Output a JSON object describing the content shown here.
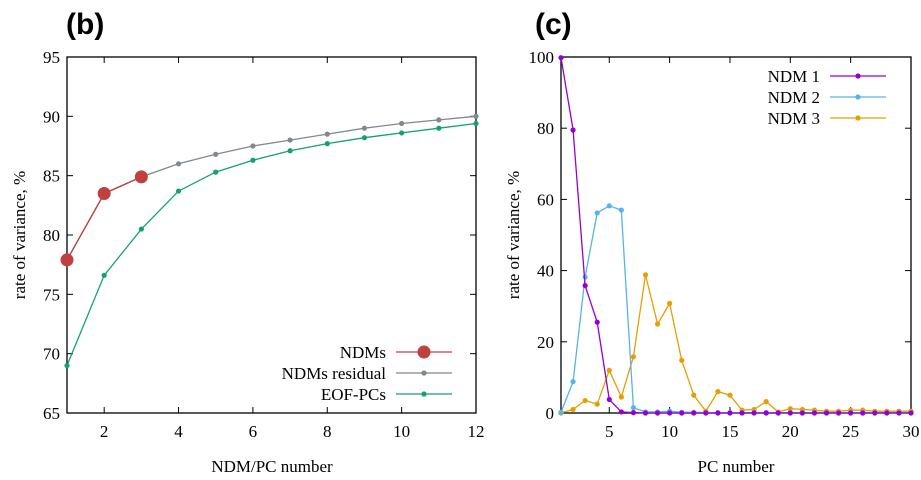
{
  "chart_data": [
    {
      "panel": "(b)",
      "type": "line",
      "xlabel": "NDM/PC number",
      "ylabel": "rate of variance, %",
      "xlim": [
        1,
        12
      ],
      "ylim": [
        65,
        95
      ],
      "xticks": [
        2,
        4,
        6,
        8,
        10,
        12
      ],
      "yticks": [
        65,
        70,
        75,
        80,
        85,
        90,
        95
      ],
      "legend_position": "bottom-right",
      "series": [
        {
          "name": "NDMs",
          "color": "#c04040",
          "marker": "large-circle",
          "x": [
            1,
            2,
            3
          ],
          "y": [
            77.9,
            83.5,
            84.9
          ]
        },
        {
          "name": "NDMs residual",
          "color": "#808890",
          "marker": "small-circle",
          "x": [
            1,
            2,
            3,
            4,
            5,
            6,
            7,
            8,
            9,
            10,
            11,
            12
          ],
          "y": [
            77.9,
            83.5,
            84.9,
            86.0,
            86.8,
            87.5,
            88.0,
            88.5,
            89.0,
            89.4,
            89.7,
            90.0
          ]
        },
        {
          "name": "EOF-PCs",
          "color": "#14a074",
          "marker": "small-circle",
          "x": [
            1,
            2,
            3,
            4,
            5,
            6,
            7,
            8,
            9,
            10,
            11,
            12
          ],
          "y": [
            69.0,
            76.6,
            80.5,
            83.7,
            85.3,
            86.3,
            87.1,
            87.7,
            88.2,
            88.6,
            89.0,
            89.4
          ]
        }
      ]
    },
    {
      "panel": "(c)",
      "type": "line",
      "xlabel": "PC number",
      "ylabel": "rate of variance, %",
      "xlim": [
        1,
        30
      ],
      "ylim": [
        0,
        100
      ],
      "xticks": [
        5,
        10,
        15,
        20,
        25,
        30
      ],
      "yticks": [
        0,
        20,
        40,
        60,
        80,
        100
      ],
      "legend_position": "top-right",
      "series": [
        {
          "name": "NDM 1",
          "color": "#9400d3",
          "marker": "small-circle",
          "x": [
            1,
            2,
            3,
            4,
            5,
            6,
            7,
            8,
            9,
            10,
            11,
            12,
            13,
            14,
            15,
            16,
            17,
            18,
            19,
            20,
            21,
            22,
            23,
            24,
            25,
            26,
            27,
            28,
            29,
            30
          ],
          "y": [
            99.8,
            79.5,
            35.8,
            25.5,
            3.8,
            0.3,
            0.1,
            0,
            0,
            0,
            0,
            0,
            0,
            0,
            0,
            0,
            0,
            0,
            0,
            0,
            0,
            0,
            0,
            0,
            0,
            0,
            0,
            0,
            0,
            0
          ]
        },
        {
          "name": "NDM 2",
          "color": "#56b4e9",
          "marker": "small-circle",
          "x": [
            1,
            2,
            3,
            4,
            5,
            6,
            7,
            8,
            9,
            10,
            11,
            12,
            13,
            14,
            15,
            16,
            17,
            18,
            19,
            20,
            21,
            22,
            23,
            24,
            25,
            26,
            27,
            28,
            29,
            30
          ],
          "y": [
            0.2,
            8.8,
            38.2,
            56.2,
            58.2,
            57.0,
            1.5,
            0.3,
            0.3,
            0.5,
            0.2,
            0.2,
            0.1,
            0.1,
            0.1,
            0.1,
            0.1,
            0.1,
            0.1,
            0.1,
            0.1,
            0.1,
            0.1,
            0.1,
            0.1,
            0.1,
            0.1,
            0.1,
            0.1,
            0.1
          ]
        },
        {
          "name": "NDM 3",
          "color": "#e69f00",
          "marker": "small-circle",
          "x": [
            1,
            2,
            3,
            4,
            5,
            6,
            7,
            8,
            9,
            10,
            11,
            12,
            13,
            14,
            15,
            16,
            17,
            18,
            19,
            20,
            21,
            22,
            23,
            24,
            25,
            26,
            27,
            28,
            29,
            30
          ],
          "y": [
            0,
            1.0,
            3.5,
            2.5,
            12.0,
            4.5,
            15.8,
            38.8,
            25.0,
            30.8,
            14.8,
            5.0,
            0.5,
            6.0,
            5.0,
            0.8,
            1.0,
            3.2,
            0.3,
            1.2,
            1.0,
            0.8,
            0.5,
            0.5,
            0.8,
            0.8,
            0.5,
            0.5,
            0.5,
            0.5
          ]
        }
      ]
    }
  ]
}
